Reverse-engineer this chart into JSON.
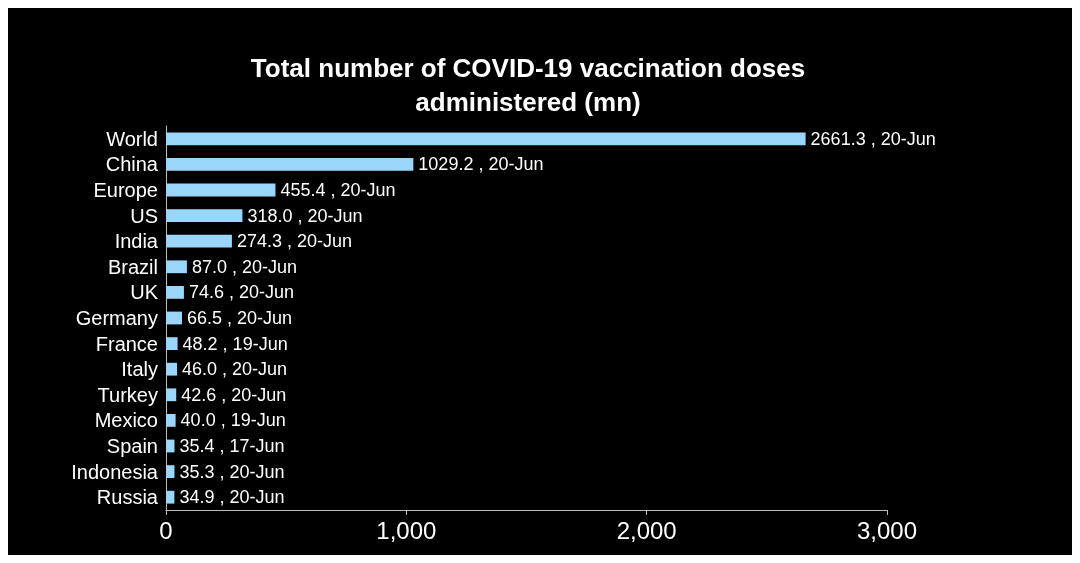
{
  "chart_data": {
    "type": "bar",
    "orientation": "horizontal",
    "title": "Total number of COVID-19 vaccination doses\nadministered (mn)",
    "categories": [
      "World",
      "China",
      "Europe",
      "US",
      "India",
      "Brazil",
      "UK",
      "Germany",
      "France",
      "Italy",
      "Turkey",
      "Mexico",
      "Spain",
      "Indonesia",
      "Russia"
    ],
    "values": [
      2661.3,
      1029.2,
      455.4,
      318.0,
      274.3,
      87.0,
      74.6,
      66.5,
      48.2,
      46.0,
      42.6,
      40.0,
      35.4,
      35.3,
      34.9
    ],
    "value_labels": [
      "2661.3 , 20-Jun",
      "1029.2 , 20-Jun",
      "455.4 , 20-Jun",
      "318.0 , 20-Jun",
      "274.3 , 20-Jun",
      "87.0 , 20-Jun",
      "74.6 , 20-Jun",
      "66.5 , 20-Jun",
      "48.2 , 19-Jun",
      "46.0 , 20-Jun",
      "42.6 , 20-Jun",
      "40.0 , 19-Jun",
      "35.4 , 17-Jun",
      "35.3 , 20-Jun",
      "34.9 , 20-Jun"
    ],
    "color": "#9ad6fa",
    "xlim": [
      0,
      3000
    ],
    "xticks": [
      0,
      {
        "value": 1000,
        "label": "1,000"
      },
      {
        "value": 2000,
        "label": "2,000"
      },
      {
        "value": 3000,
        "label": "3,000"
      }
    ],
    "grid": false
  }
}
